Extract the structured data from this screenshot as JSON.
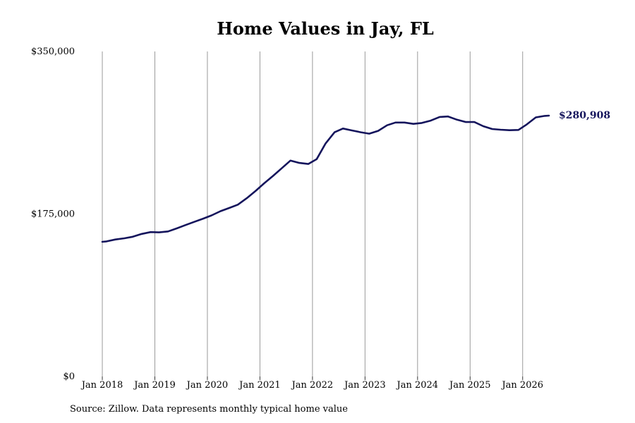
{
  "chart_data": {
    "type": "line",
    "title": "Home Values in Jay, FL",
    "source": "Source: Zillow. Data represents monthly typical home value",
    "y_ticks": [
      {
        "value": 0,
        "label": "$0"
      },
      {
        "value": 175000,
        "label": "$175,000"
      },
      {
        "value": 350000,
        "label": "$350,000"
      }
    ],
    "ylim": [
      0,
      350000
    ],
    "x_ticks": [
      {
        "value": 2018.0,
        "label": "Jan 2018"
      },
      {
        "value": 2019.0,
        "label": "Jan 2019"
      },
      {
        "value": 2020.0,
        "label": "Jan 2020"
      },
      {
        "value": 2021.0,
        "label": "Jan 2021"
      },
      {
        "value": 2022.0,
        "label": "Jan 2022"
      },
      {
        "value": 2023.0,
        "label": "Jan 2023"
      },
      {
        "value": 2024.0,
        "label": "Jan 2024"
      },
      {
        "value": 2025.0,
        "label": "Jan 2025"
      },
      {
        "value": 2026.0,
        "label": "Jan 2026"
      }
    ],
    "xlim": [
      2018.0,
      2026.5
    ],
    "grid": "vertical",
    "line_color": "#14145c",
    "end_label": "$280,908",
    "series": [
      {
        "points": [
          [
            2018.0,
            145000
          ],
          [
            2018.08,
            145500
          ],
          [
            2018.25,
            147500
          ],
          [
            2018.42,
            148800
          ],
          [
            2018.58,
            150500
          ],
          [
            2018.75,
            153500
          ],
          [
            2018.92,
            155500
          ],
          [
            2019.08,
            155200
          ],
          [
            2019.25,
            156200
          ],
          [
            2019.42,
            159500
          ],
          [
            2019.58,
            163000
          ],
          [
            2019.75,
            166500
          ],
          [
            2019.92,
            170000
          ],
          [
            2020.08,
            173500
          ],
          [
            2020.25,
            178000
          ],
          [
            2020.42,
            181500
          ],
          [
            2020.58,
            185000
          ],
          [
            2020.75,
            192000
          ],
          [
            2020.92,
            200000
          ],
          [
            2021.08,
            208000
          ],
          [
            2021.25,
            216000
          ],
          [
            2021.42,
            224500
          ],
          [
            2021.58,
            232500
          ],
          [
            2021.75,
            230000
          ],
          [
            2021.92,
            228800
          ],
          [
            2022.08,
            234000
          ],
          [
            2022.25,
            251000
          ],
          [
            2022.42,
            263000
          ],
          [
            2022.58,
            267000
          ],
          [
            2022.75,
            265000
          ],
          [
            2022.92,
            263000
          ],
          [
            2023.08,
            261500
          ],
          [
            2023.25,
            264500
          ],
          [
            2023.42,
            270500
          ],
          [
            2023.58,
            273500
          ],
          [
            2023.75,
            273500
          ],
          [
            2023.92,
            272000
          ],
          [
            2024.08,
            273000
          ],
          [
            2024.25,
            275500
          ],
          [
            2024.42,
            279500
          ],
          [
            2024.58,
            280000
          ],
          [
            2024.75,
            276500
          ],
          [
            2024.92,
            274000
          ],
          [
            2025.08,
            274000
          ],
          [
            2025.25,
            269500
          ],
          [
            2025.42,
            266500
          ],
          [
            2025.58,
            265700
          ],
          [
            2025.75,
            265200
          ],
          [
            2025.92,
            265500
          ],
          [
            2026.08,
            271500
          ],
          [
            2026.25,
            279000
          ],
          [
            2026.42,
            280600
          ],
          [
            2026.5,
            280908
          ]
        ]
      }
    ]
  }
}
